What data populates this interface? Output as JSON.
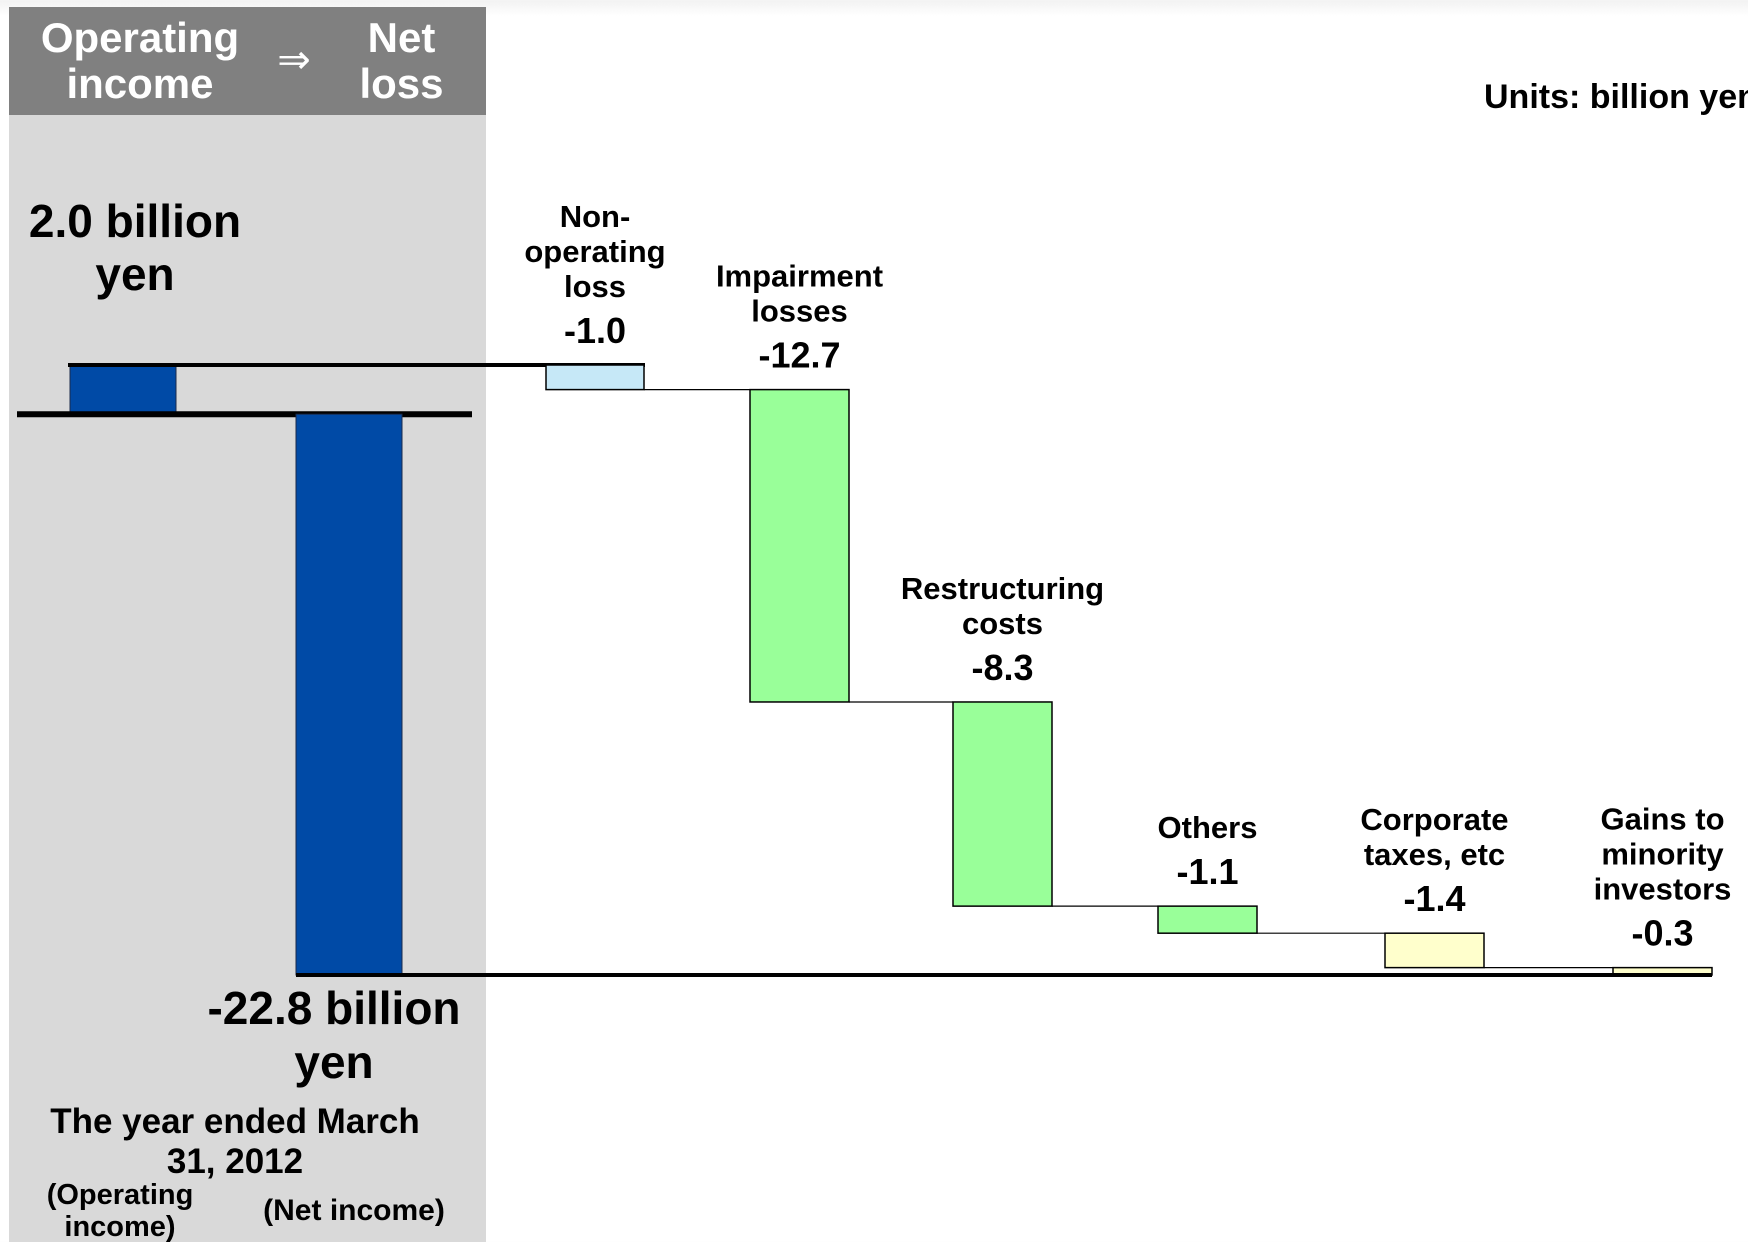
{
  "header": {
    "left_label": "Operating\nincome",
    "arrow": "⇒",
    "right_label": "Net\nloss"
  },
  "units_label": "Units: billion yen",
  "colors": {
    "total_bar": "#004aa6",
    "light_blue": "#c6e8f7",
    "green": "#99ff99",
    "light_yellow": "#ffffcc",
    "panel": "#d9d9d9",
    "header": "#808080"
  },
  "chart_data": {
    "type": "bar",
    "subtype": "waterfall",
    "period": "The year ended March 31, 2012",
    "start": {
      "category": "(Operating income)",
      "value": 2.0,
      "label": "2.0 billion yen"
    },
    "steps": [
      {
        "category": "Non-operating loss",
        "value": -1.0,
        "value_label": "-1.0",
        "color": "#c6e8f7"
      },
      {
        "category": "Impairment losses",
        "value": -12.7,
        "value_label": "-12.7",
        "color": "#99ff99"
      },
      {
        "category": "Restructuring costs",
        "value": -8.3,
        "value_label": "-8.3",
        "color": "#99ff99"
      },
      {
        "category": "Others",
        "value": -1.1,
        "value_label": "-1.1",
        "color": "#99ff99"
      },
      {
        "category": "Corporate taxes, etc",
        "value": -1.4,
        "value_label": "-1.4",
        "color": "#ffffcc"
      },
      {
        "category": "Gains to minority investors",
        "value": -0.3,
        "value_label": "-0.3",
        "color": "#ffffcc"
      }
    ],
    "end": {
      "category": "(Net income)",
      "value": -22.8,
      "label": "-22.8 billion yen"
    },
    "ylim": [
      -22.8,
      2.0
    ],
    "grid": false,
    "legend": "none"
  }
}
